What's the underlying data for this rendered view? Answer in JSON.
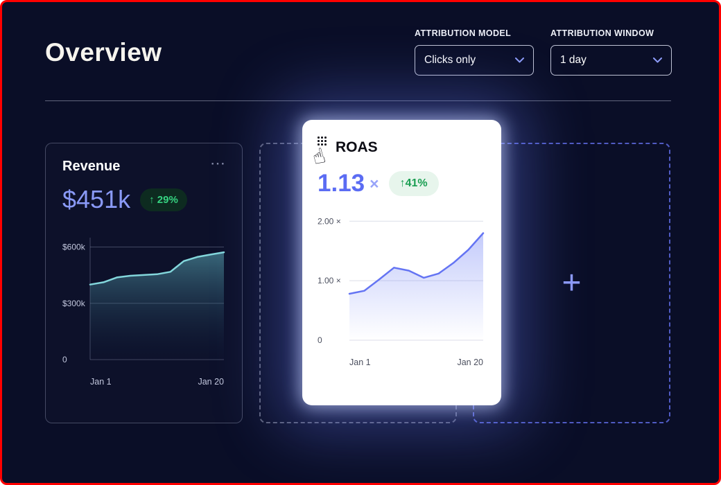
{
  "page": {
    "title": "Overview"
  },
  "controls": {
    "attribution_model": {
      "label": "ATTRIBUTION MODEL",
      "value": "Clicks only"
    },
    "attribution_window": {
      "label": "ATTRIBUTION WINDOW",
      "value": "1 day"
    }
  },
  "revenue_card": {
    "title": "Revenue",
    "menu_icon": "⋯",
    "value": "$451k",
    "delta": "↑ 29%"
  },
  "roas_card": {
    "title": "ROAS",
    "value": "1.13",
    "multiplier": "×",
    "delta": "↑41%",
    "drag_cursor_icon": "☝"
  },
  "dropzone": {
    "plus_icon": "+"
  },
  "colors": {
    "background": "#0a0e27",
    "frame_border": "#ff0000",
    "accent_periwinkle": "#8a9af7",
    "roas_blue": "#5b6cf3",
    "green": "#36d381",
    "green_dark_badge_bg": "#0d2b20",
    "green_light_badge_bg": "#e7f5ec",
    "green_text_on_light": "#1a9e52",
    "revenue_line": "#83d7dc",
    "roas_line": "#6474f3",
    "dashed_gray": "#9ba0b3",
    "dashed_blue": "#6270eb"
  },
  "chart_data": [
    {
      "type": "area",
      "title": "Revenue",
      "x_ticks": [
        "Jan 1",
        "Jan 20"
      ],
      "y_ticks": [
        {
          "value": 600,
          "label": "$600k"
        },
        {
          "value": 300,
          "label": "$300k"
        },
        {
          "value": 0,
          "label": "0"
        }
      ],
      "ylim": [
        0,
        650
      ],
      "values": [
        400,
        412,
        438,
        447,
        451,
        455,
        468,
        525,
        547,
        560,
        572
      ],
      "line_color": "#83d7dc",
      "fill_from": "rgba(94,176,188,0.55)",
      "fill_to": "rgba(20,40,70,0.05)",
      "grid_color": "rgba(165,175,205,0.35)",
      "label_color": "#c2c7dd",
      "show_y_axis_line": true
    },
    {
      "type": "area",
      "title": "ROAS",
      "x_ticks": [
        "Jan 1",
        "Jan 20"
      ],
      "y_ticks": [
        {
          "value": 2,
          "label": "2.00 ×"
        },
        {
          "value": 1,
          "label": "1.00 ×"
        },
        {
          "value": 0,
          "label": "0"
        }
      ],
      "ylim": [
        0,
        2.05
      ],
      "values": [
        0.78,
        0.83,
        1.02,
        1.22,
        1.17,
        1.05,
        1.12,
        1.3,
        1.52,
        1.8
      ],
      "line_color": "#6474f3",
      "fill_from": "rgba(108,126,245,0.4)",
      "fill_to": "rgba(108,126,245,0)",
      "grid_color": "#dcdee8",
      "label_color": "#4b4f5e",
      "show_y_axis_line": false
    }
  ]
}
